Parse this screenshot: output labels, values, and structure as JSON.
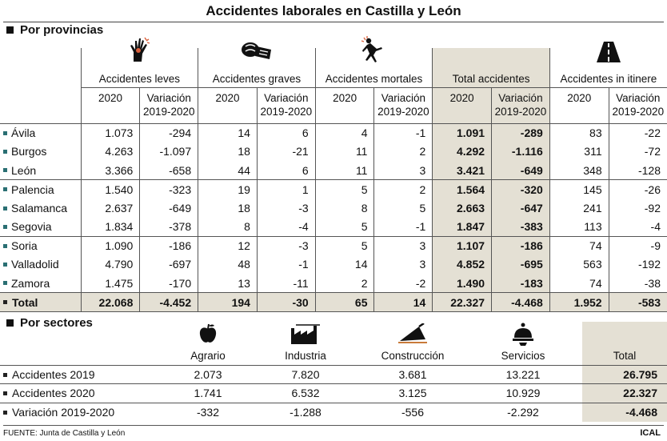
{
  "title": "Accidentes laborales en Castilla y León",
  "section_provinces": "Por provincias",
  "section_sectors": "Por sectores",
  "groups": {
    "leves": "Accidentes leves",
    "graves": "Accidentes graves",
    "mortales": "Accidentes mortales",
    "total": "Total accidentes",
    "itinere": "Accidentes in itinere"
  },
  "sub": {
    "year": "2020",
    "var_line1": "Variación",
    "var_line2": "2019-2020"
  },
  "icons": {
    "leves": "injured-hand-icon",
    "graves": "bandaged-body-icon",
    "mortales": "falling-person-icon",
    "total": "none",
    "itinere": "road-icon",
    "agrario": "apple-icon",
    "industria": "factory-icon",
    "construccion": "trowel-icon",
    "servicios": "service-bell-icon"
  },
  "colors": {
    "shade": "#e4e0d4",
    "bullet": "#2a6f73",
    "icon": "#111111"
  },
  "provinces": [
    {
      "name": "Ávila",
      "leves": "1.073",
      "leves_var": "-294",
      "graves": "14",
      "graves_var": "6",
      "mortales": "4",
      "mortales_var": "-1",
      "total": "1.091",
      "total_var": "-289",
      "itinere": "83",
      "itinere_var": "-22"
    },
    {
      "name": "Burgos",
      "leves": "4.263",
      "leves_var": "-1.097",
      "graves": "18",
      "graves_var": "-21",
      "mortales": "11",
      "mortales_var": "2",
      "total": "4.292",
      "total_var": "-1.116",
      "itinere": "311",
      "itinere_var": "-72"
    },
    {
      "name": "León",
      "leves": "3.366",
      "leves_var": "-658",
      "graves": "44",
      "graves_var": "6",
      "mortales": "11",
      "mortales_var": "3",
      "total": "3.421",
      "total_var": "-649",
      "itinere": "348",
      "itinere_var": "-128"
    },
    {
      "name": "Palencia",
      "leves": "1.540",
      "leves_var": "-323",
      "graves": "19",
      "graves_var": "1",
      "mortales": "5",
      "mortales_var": "2",
      "total": "1.564",
      "total_var": "-320",
      "itinere": "145",
      "itinere_var": "-26"
    },
    {
      "name": "Salamanca",
      "leves": "2.637",
      "leves_var": "-649",
      "graves": "18",
      "graves_var": "-3",
      "mortales": "8",
      "mortales_var": "5",
      "total": "2.663",
      "total_var": "-647",
      "itinere": "241",
      "itinere_var": "-92"
    },
    {
      "name": "Segovia",
      "leves": "1.834",
      "leves_var": "-378",
      "graves": "8",
      "graves_var": "-4",
      "mortales": "5",
      "mortales_var": "-1",
      "total": "1.847",
      "total_var": "-383",
      "itinere": "113",
      "itinere_var": "-4"
    },
    {
      "name": "Soria",
      "leves": "1.090",
      "leves_var": "-186",
      "graves": "12",
      "graves_var": "-3",
      "mortales": "5",
      "mortales_var": "3",
      "total": "1.107",
      "total_var": "-186",
      "itinere": "74",
      "itinere_var": "-9"
    },
    {
      "name": "Valladolid",
      "leves": "4.790",
      "leves_var": "-697",
      "graves": "48",
      "graves_var": "-1",
      "mortales": "14",
      "mortales_var": "3",
      "total": "4.852",
      "total_var": "-695",
      "itinere": "563",
      "itinere_var": "-192"
    },
    {
      "name": "Zamora",
      "leves": "1.475",
      "leves_var": "-170",
      "graves": "13",
      "graves_var": "-11",
      "mortales": "2",
      "mortales_var": "-2",
      "total": "1.490",
      "total_var": "-183",
      "itinere": "74",
      "itinere_var": "-38"
    }
  ],
  "province_total": {
    "name": "Total",
    "leves": "22.068",
    "leves_var": "-4.452",
    "graves": "194",
    "graves_var": "-30",
    "mortales": "65",
    "mortales_var": "14",
    "total": "22.327",
    "total_var": "-4.468",
    "itinere": "1.952",
    "itinere_var": "-583"
  },
  "sector_headers": {
    "agrario": "Agrario",
    "industria": "Industria",
    "construccion": "Construcción",
    "servicios": "Servicios",
    "total": "Total"
  },
  "sectors": [
    {
      "name": "Accidentes 2019",
      "agrario": "2.073",
      "industria": "7.820",
      "construccion": "3.681",
      "servicios": "13.221",
      "total": "26.795"
    },
    {
      "name": "Accidentes 2020",
      "agrario": "1.741",
      "industria": "6.532",
      "construccion": "3.125",
      "servicios": "10.929",
      "total": "22.327"
    },
    {
      "name": "Variación 2019-2020",
      "agrario": "-332",
      "industria": "-1.288",
      "construccion": "-556",
      "servicios": "-2.292",
      "total": "-4.468"
    }
  ],
  "footer": {
    "source": "FUENTE: Junta de Castilla y León",
    "brand": "ICAL"
  }
}
